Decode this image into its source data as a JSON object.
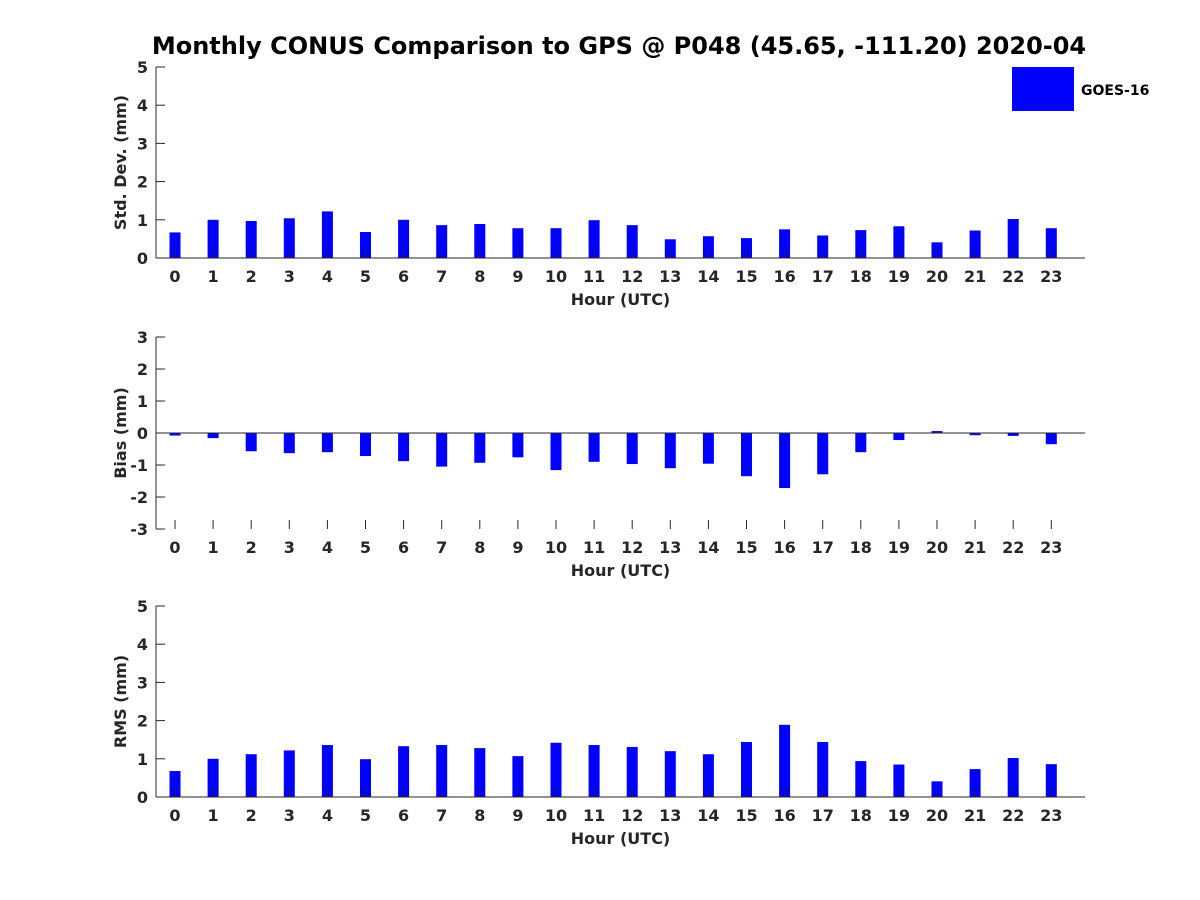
{
  "title": "Monthly CONUS Comparison to GPS @ P048 (45.65, -111.20) 2020-04",
  "legend": {
    "label": "GOES-16",
    "color": "#0000ff"
  },
  "chart_data": [
    {
      "type": "bar",
      "categories": [
        "0",
        "1",
        "2",
        "3",
        "4",
        "5",
        "6",
        "7",
        "8",
        "9",
        "10",
        "11",
        "12",
        "13",
        "14",
        "15",
        "16",
        "17",
        "18",
        "19",
        "20",
        "21",
        "22",
        "23"
      ],
      "series": [
        {
          "name": "GOES-16",
          "values": [
            0.67,
            1.0,
            0.97,
            1.04,
            1.22,
            0.68,
            1.0,
            0.86,
            0.89,
            0.78,
            0.78,
            0.99,
            0.86,
            0.49,
            0.57,
            0.52,
            0.75,
            0.59,
            0.73,
            0.83,
            0.41,
            0.72,
            1.02,
            0.78
          ]
        }
      ],
      "xlabel": "Hour (UTC)",
      "ylabel": "Std. Dev. (mm)",
      "ylim": [
        0,
        5
      ],
      "yticks": [
        "0",
        "1",
        "2",
        "3",
        "4",
        "5"
      ]
    },
    {
      "type": "bar",
      "categories": [
        "0",
        "1",
        "2",
        "3",
        "4",
        "5",
        "6",
        "7",
        "8",
        "9",
        "10",
        "11",
        "12",
        "13",
        "14",
        "15",
        "16",
        "17",
        "18",
        "19",
        "20",
        "21",
        "22",
        "23"
      ],
      "series": [
        {
          "name": "GOES-16",
          "values": [
            -0.08,
            -0.16,
            -0.57,
            -0.63,
            -0.6,
            -0.72,
            -0.88,
            -1.05,
            -0.93,
            -0.76,
            -1.16,
            -0.9,
            -0.97,
            -1.1,
            -0.96,
            -1.35,
            -1.72,
            -1.29,
            -0.6,
            -0.22,
            0.06,
            -0.07,
            -0.09,
            -0.35
          ]
        }
      ],
      "xlabel": "Hour (UTC)",
      "ylabel": "Bias (mm)",
      "ylim": [
        -3,
        3
      ],
      "yticks": [
        "-3",
        "-2",
        "-1",
        "0",
        "1",
        "2",
        "3"
      ]
    },
    {
      "type": "bar",
      "categories": [
        "0",
        "1",
        "2",
        "3",
        "4",
        "5",
        "6",
        "7",
        "8",
        "9",
        "10",
        "11",
        "12",
        "13",
        "14",
        "15",
        "16",
        "17",
        "18",
        "19",
        "20",
        "21",
        "22",
        "23"
      ],
      "series": [
        {
          "name": "GOES-16",
          "values": [
            0.68,
            1.0,
            1.12,
            1.22,
            1.36,
            0.99,
            1.33,
            1.36,
            1.28,
            1.07,
            1.42,
            1.36,
            1.31,
            1.2,
            1.12,
            1.44,
            1.89,
            1.44,
            0.94,
            0.85,
            0.41,
            0.73,
            1.02,
            0.86
          ]
        }
      ],
      "xlabel": "Hour (UTC)",
      "ylabel": "RMS (mm)",
      "ylim": [
        0,
        5
      ],
      "yticks": [
        "0",
        "1",
        "2",
        "3",
        "4",
        "5"
      ]
    }
  ]
}
